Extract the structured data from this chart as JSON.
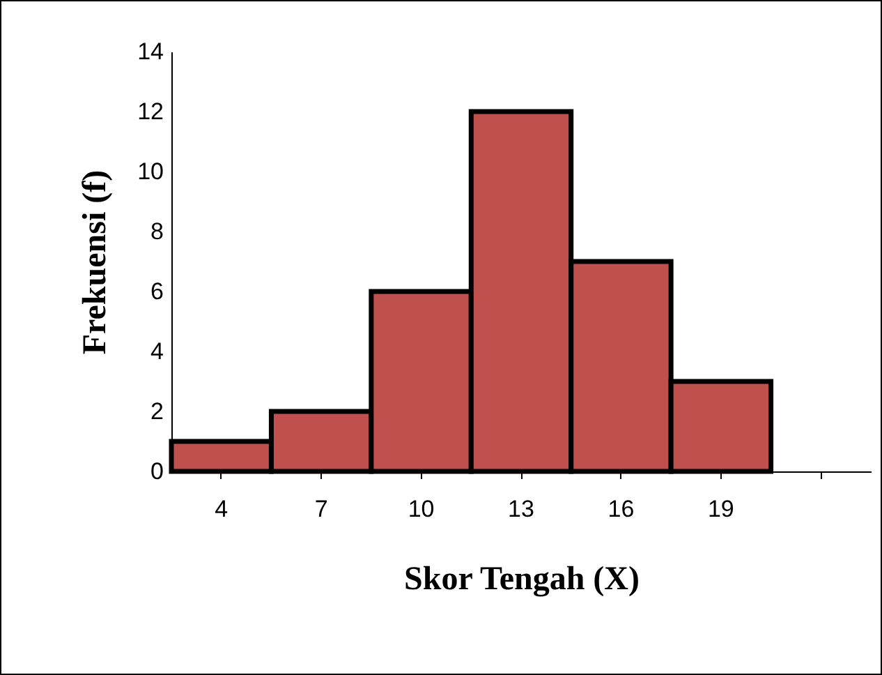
{
  "chart_data": {
    "type": "bar",
    "xlabel": "Skor Tengah (X)",
    "ylabel": "Frekuensi (f)",
    "categories": [
      "4",
      "7",
      "10",
      "13",
      "16",
      "19",
      null
    ],
    "values": [
      1,
      2,
      6,
      12,
      7,
      3,
      null
    ],
    "color": "#c0504d",
    "ylim": [
      0,
      14
    ],
    "yticks": [
      0,
      2,
      4,
      6,
      8,
      10,
      12,
      14
    ],
    "grid": false
  }
}
